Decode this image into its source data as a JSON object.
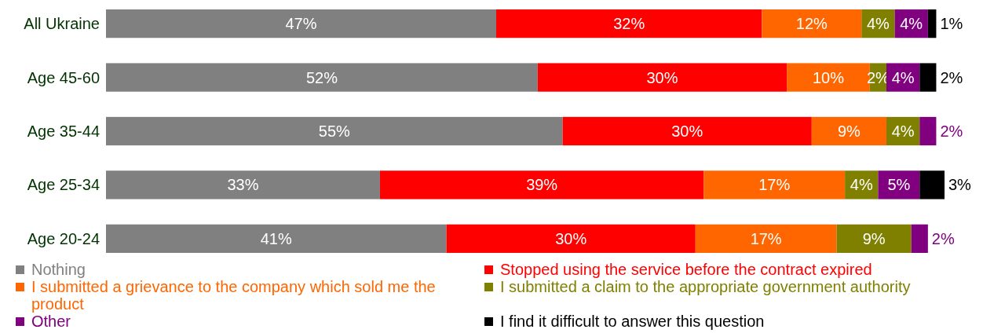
{
  "chart_data": {
    "type": "bar",
    "orientation": "horizontal",
    "stacked": true,
    "legend": "bottom",
    "categories": [
      "All Ukraine",
      "Age 45-60",
      "Age 35-44",
      "Age 25-34",
      "Age 20-24"
    ],
    "series": [
      {
        "name": "Nothing",
        "color": "#808080",
        "values": [
          47,
          52,
          55,
          33,
          41
        ],
        "value_labels": [
          "47%",
          "52%",
          "55%",
          "33%",
          "41%"
        ]
      },
      {
        "name": "Stopped using the service before the contract expired",
        "color": "#ff0000",
        "values": [
          32,
          30,
          30,
          39,
          30
        ],
        "value_labels": [
          "32%",
          "30%",
          "30%",
          "39%",
          "30%"
        ]
      },
      {
        "name": "I submitted a grievance to the company which sold me the product",
        "color": "#ff6600",
        "values": [
          12,
          10,
          9,
          17,
          17
        ],
        "value_labels": [
          "12%",
          "10%",
          "9%",
          "17%",
          "17%"
        ]
      },
      {
        "name": "I submitted a claim to the appropriate government authority",
        "color": "#808000",
        "values": [
          4,
          2,
          4,
          4,
          9
        ],
        "value_labels": [
          "4%",
          "2%",
          "4%",
          "4%",
          "9%"
        ]
      },
      {
        "name": "Other",
        "color": "#800080",
        "values": [
          4,
          4,
          2,
          5,
          2
        ],
        "value_labels": [
          "4%",
          "4%",
          "2%",
          "5%",
          "2%"
        ]
      },
      {
        "name": "I find it difficult to answer this question",
        "color": "#000000",
        "values": [
          1,
          2,
          null,
          3,
          null
        ],
        "value_labels": [
          "1%",
          "2%",
          null,
          "3%",
          null
        ]
      }
    ]
  }
}
